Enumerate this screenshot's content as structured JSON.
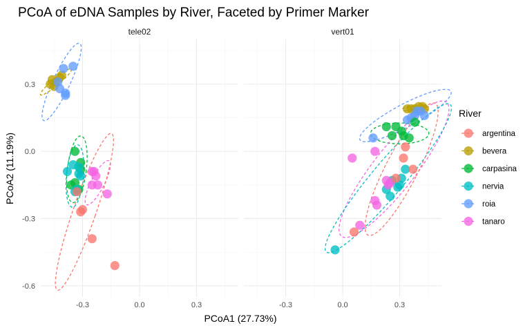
{
  "chart_data": {
    "type": "scatter",
    "title": "PCoA of eDNA Samples by River, Faceted by Primer Marker",
    "xlabel": "PCoA1 (27.73%)",
    "ylabel": "PCoA2 (11.19%)",
    "xlim": [
      -0.52,
      0.52
    ],
    "ylim": [
      -0.65,
      0.5
    ],
    "x_ticks": [
      -0.3,
      0.0,
      0.3
    ],
    "x_tick_labels": [
      "-0.3",
      "0.0",
      "0.3"
    ],
    "y_ticks": [
      0.3,
      0.0,
      -0.3,
      -0.6
    ],
    "y_tick_labels": [
      "0.3",
      "0.0",
      "-0.3",
      "-0.6"
    ],
    "grid": true,
    "legend": {
      "title": "River",
      "position": "right",
      "entries": [
        "argentina",
        "bevera",
        "carpasina",
        "nervia",
        "roia",
        "tanaro"
      ]
    },
    "colors": {
      "argentina": "#F8766D",
      "bevera": "#B79F00",
      "carpasina": "#00BA38",
      "nervia": "#00BFC4",
      "roia": "#619CFF",
      "tanaro": "#F564E3"
    },
    "facets": [
      {
        "label": "tele02",
        "series": [
          {
            "name": "bevera",
            "points": [
              [
                -0.47,
                0.3
              ],
              [
                -0.46,
                0.32
              ],
              [
                -0.44,
                0.31
              ],
              [
                -0.42,
                0.33
              ],
              [
                -0.41,
                0.34
              ],
              [
                -0.45,
                0.29
              ]
            ]
          },
          {
            "name": "roia",
            "points": [
              [
                -0.43,
                0.31
              ],
              [
                -0.4,
                0.37
              ],
              [
                -0.35,
                0.38
              ],
              [
                -0.42,
                0.28
              ],
              [
                -0.39,
                0.26
              ],
              [
                -0.39,
                0.25
              ]
            ]
          },
          {
            "name": "carpasina",
            "points": [
              [
                -0.34,
                0.0
              ],
              [
                -0.31,
                -0.05
              ],
              [
                -0.31,
                -0.08
              ],
              [
                -0.34,
                -0.14
              ],
              [
                -0.36,
                -0.15
              ],
              [
                -0.32,
                -0.17
              ]
            ]
          },
          {
            "name": "nervia",
            "points": [
              [
                -0.38,
                -0.09
              ],
              [
                -0.35,
                -0.06
              ],
              [
                -0.32,
                -0.07
              ],
              [
                -0.32,
                -0.1
              ],
              [
                -0.31,
                -0.11
              ],
              [
                -0.34,
                -0.18
              ],
              [
                -0.33,
                -0.17
              ]
            ]
          },
          {
            "name": "tanaro",
            "points": [
              [
                -0.25,
                -0.09
              ],
              [
                -0.23,
                -0.11
              ],
              [
                -0.25,
                -0.15
              ],
              [
                -0.22,
                -0.15
              ],
              [
                -0.17,
                -0.19
              ],
              [
                -0.24,
                -0.09
              ]
            ]
          },
          {
            "name": "argentina",
            "points": [
              [
                -0.33,
                -0.18
              ],
              [
                -0.31,
                -0.27
              ],
              [
                -0.3,
                -0.26
              ],
              [
                -0.25,
                -0.39
              ],
              [
                -0.13,
                -0.51
              ]
            ]
          }
        ],
        "ellipses": [
          {
            "name": "roia",
            "cx": -0.41,
            "cy": 0.31,
            "rx": 0.045,
            "ry": 0.19,
            "angle": 25
          },
          {
            "name": "bevera",
            "cx": -0.44,
            "cy": 0.31,
            "rx": 0.018,
            "ry": 0.09,
            "angle": 50
          },
          {
            "name": "carpasina",
            "cx": -0.33,
            "cy": -0.08,
            "rx": 0.05,
            "ry": 0.15,
            "angle": 7
          },
          {
            "name": "nervia",
            "cx": -0.34,
            "cy": -0.11,
            "rx": 0.045,
            "ry": 0.14,
            "angle": 5
          },
          {
            "name": "tanaro",
            "cx": -0.22,
            "cy": -0.14,
            "rx": 0.035,
            "ry": 0.11,
            "angle": 27
          },
          {
            "name": "argentina",
            "cx": -0.29,
            "cy": -0.27,
            "rx": 0.06,
            "ry": 0.37,
            "angle": 19
          }
        ]
      },
      {
        "label": "vert01",
        "series": [
          {
            "name": "bevera",
            "points": [
              [
                0.34,
                0.19
              ],
              [
                0.36,
                0.19
              ],
              [
                0.38,
                0.19
              ],
              [
                0.4,
                0.2
              ],
              [
                0.42,
                0.2
              ],
              [
                0.43,
                0.19
              ]
            ]
          },
          {
            "name": "roia",
            "points": [
              [
                0.16,
                0.06
              ],
              [
                0.34,
                0.14
              ],
              [
                0.36,
                0.15
              ],
              [
                0.38,
                0.16
              ],
              [
                0.39,
                0.18
              ],
              [
                0.41,
                0.18
              ],
              [
                0.43,
                0.16
              ]
            ]
          },
          {
            "name": "carpasina",
            "points": [
              [
                0.23,
                0.11
              ],
              [
                0.26,
                0.07
              ],
              [
                0.28,
                0.11
              ],
              [
                0.31,
                0.09
              ],
              [
                0.32,
                0.07
              ],
              [
                0.35,
                0.06
              ],
              [
                0.38,
                0.13
              ]
            ]
          },
          {
            "name": "nervia",
            "points": [
              [
                -0.04,
                -0.44
              ],
              [
                0.23,
                -0.17
              ],
              [
                0.25,
                -0.2
              ],
              [
                0.29,
                -0.16
              ],
              [
                0.3,
                -0.15
              ],
              [
                0.31,
                -0.12
              ],
              [
                0.33,
                -0.08
              ],
              [
                0.26,
                -0.13
              ]
            ]
          },
          {
            "name": "tanaro",
            "points": [
              [
                0.05,
                -0.03
              ],
              [
                0.17,
                0.0
              ],
              [
                0.23,
                -0.13
              ],
              [
                0.24,
                -0.15
              ],
              [
                0.25,
                -0.14
              ],
              [
                0.17,
                -0.22
              ],
              [
                0.18,
                -0.24
              ],
              [
                0.09,
                -0.33
              ]
            ]
          },
          {
            "name": "argentina",
            "points": [
              [
                0.06,
                -0.36
              ],
              [
                0.28,
                -0.12
              ],
              [
                0.32,
                -0.03
              ],
              [
                0.33,
                0.02
              ],
              [
                0.37,
                -0.08
              ]
            ]
          }
        ],
        "ellipses": [
          {
            "name": "roia",
            "cx": 0.33,
            "cy": 0.16,
            "rx": 0.06,
            "ry": 0.23,
            "angle": 62
          },
          {
            "name": "bevera",
            "cx": 0.385,
            "cy": 0.19,
            "rx": 0.015,
            "ry": 0.06,
            "angle": 88
          },
          {
            "name": "carpasina",
            "cx": 0.3,
            "cy": 0.08,
            "rx": 0.055,
            "ry": 0.13,
            "angle": 90
          },
          {
            "name": "tanaro",
            "cx": 0.27,
            "cy": -0.08,
            "rx": 0.11,
            "ry": 0.38,
            "angle": 38
          },
          {
            "name": "nervia",
            "cx": 0.24,
            "cy": -0.12,
            "rx": 0.085,
            "ry": 0.43,
            "angle": 40
          },
          {
            "name": "argentina",
            "cx": 0.31,
            "cy": -0.08,
            "rx": 0.085,
            "ry": 0.33,
            "angle": 27
          }
        ]
      }
    ]
  }
}
